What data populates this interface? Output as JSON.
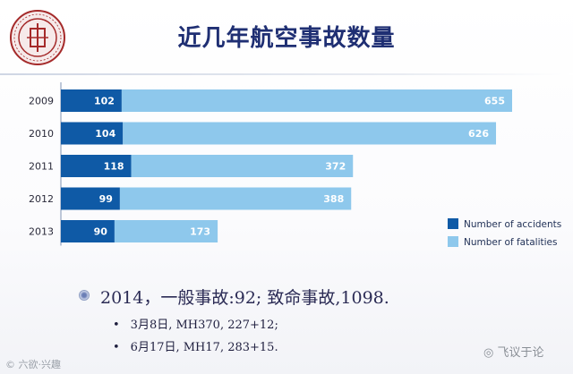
{
  "slide": {
    "title": "近几年航空事故数量",
    "bullet_main": "2014，一般事故:92; 致命事故,1098.",
    "bullet_subs": [
      "3月8日, MH370, 227+12;",
      "6月17日, MH17, 283+15."
    ],
    "watermark_left": "© 六欲·兴趣",
    "watermark_right": "飞议于论"
  },
  "chart_data": {
    "type": "bar",
    "orientation": "horizontal",
    "stacked": true,
    "categories": [
      "2009",
      "2010",
      "2011",
      "2012",
      "2013"
    ],
    "series": [
      {
        "name": "Number of accidents",
        "values": [
          102,
          104,
          118,
          99,
          90
        ],
        "color": "#0f5aa6"
      },
      {
        "name": "Number of fatalities",
        "values": [
          655,
          626,
          372,
          388,
          173
        ],
        "color": "#8ec8ec"
      }
    ],
    "xlim": [
      0,
      757
    ],
    "legend": "bottom-right",
    "grid": false
  }
}
